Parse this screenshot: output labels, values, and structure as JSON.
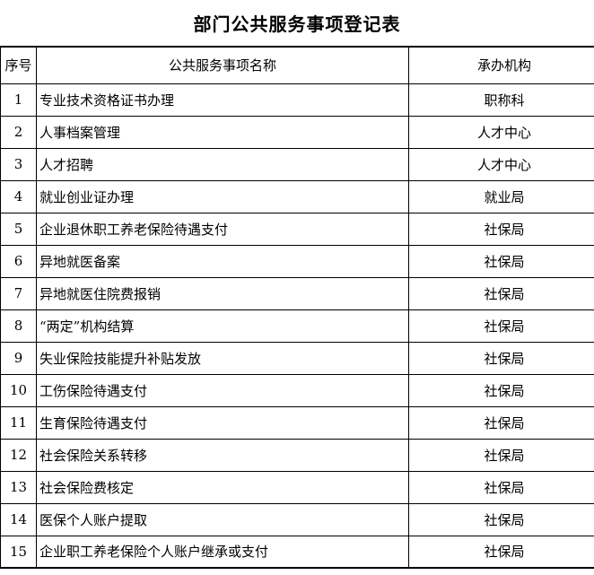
{
  "title": "部门公共服务事项登记表",
  "table": {
    "columns": [
      "序号",
      "公共服务事项名称",
      "承办机构"
    ],
    "rows": [
      {
        "no": "1",
        "name": "专业技术资格证书办理",
        "agency": "职称科"
      },
      {
        "no": "2",
        "name": "人事档案管理",
        "agency": "人才中心"
      },
      {
        "no": "3",
        "name": "人才招聘",
        "agency": "人才中心"
      },
      {
        "no": "4",
        "name": "就业创业证办理",
        "agency": "就业局"
      },
      {
        "no": "5",
        "name": "企业退休职工养老保险待遇支付",
        "agency": "社保局"
      },
      {
        "no": "6",
        "name": "异地就医备案",
        "agency": "社保局"
      },
      {
        "no": "7",
        "name": "异地就医住院费报销",
        "agency": "社保局"
      },
      {
        "no": "8",
        "name": "“两定”机构结算",
        "agency": "社保局"
      },
      {
        "no": "9",
        "name": "失业保险技能提升补贴发放",
        "agency": "社保局"
      },
      {
        "no": "10",
        "name": "工伤保险待遇支付",
        "agency": "社保局"
      },
      {
        "no": "11",
        "name": "生育保险待遇支付",
        "agency": "社保局"
      },
      {
        "no": "12",
        "name": "社会保险关系转移",
        "agency": "社保局"
      },
      {
        "no": "13",
        "name": "社会保险费核定",
        "agency": "社保局"
      },
      {
        "no": "14",
        "name": "医保个人账户提取",
        "agency": "社保局"
      },
      {
        "no": "15",
        "name": "企业职工养老保险个人账户继承或支付",
        "agency": "社保局"
      }
    ]
  },
  "colors": {
    "text": "#000000",
    "border": "#000000",
    "background": "#ffffff"
  }
}
